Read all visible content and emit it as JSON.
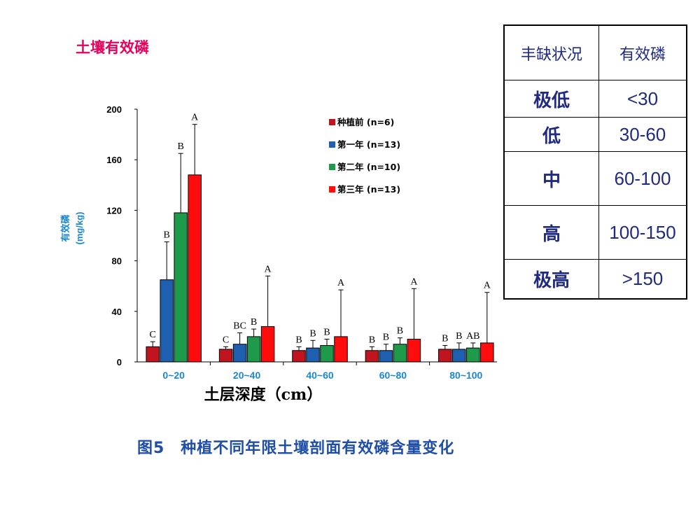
{
  "title": "土壤有效磷",
  "caption": "图5　种植不同年限土壤剖面有效磷含量变化",
  "table": {
    "headers": [
      "丰缺状况",
      "有效磷"
    ],
    "rows": [
      {
        "level": "极低",
        "range": "<30"
      },
      {
        "level": "低",
        "range": "30-60"
      },
      {
        "level": "中",
        "range": "60-100"
      },
      {
        "level": "高",
        "range": "100-150"
      },
      {
        "level": "极高",
        "range": ">150"
      }
    ]
  },
  "chart_data": {
    "type": "bar",
    "xlabel": "土层深度（cm）",
    "ylabel_line1": "有效磷",
    "ylabel_line2": "(mg/kg)",
    "ylim": [
      0,
      200
    ],
    "yticks": [
      0,
      40,
      80,
      120,
      160,
      200
    ],
    "categories": [
      "0~20",
      "20~40",
      "40~60",
      "60~80",
      "80~100"
    ],
    "legend_position": "top-right",
    "series": [
      {
        "name": "种植前 (n=6)",
        "color": "#c0141e",
        "values": [
          12,
          10,
          9,
          9,
          10
        ],
        "errors": [
          4,
          2,
          3,
          3,
          3
        ],
        "letters": [
          "C",
          "C",
          "B",
          "B",
          "B"
        ]
      },
      {
        "name": "第一年 (n=13)",
        "color": "#1f5fb0",
        "values": [
          65,
          14,
          11,
          9,
          10
        ],
        "errors": [
          30,
          9,
          6,
          5,
          5
        ],
        "letters": [
          "B",
          "BC",
          "B",
          "B",
          "B"
        ]
      },
      {
        "name": "第二年 (n=10)",
        "color": "#1f9a4a",
        "values": [
          118,
          20,
          13,
          14,
          11
        ],
        "errors": [
          47,
          6,
          5,
          5,
          4
        ],
        "letters": [
          "B",
          "B",
          "B",
          "B",
          "AB"
        ]
      },
      {
        "name": "第三年 (n=13)",
        "color": "#ff0d0d",
        "values": [
          148,
          28,
          20,
          18,
          15
        ],
        "errors": [
          40,
          40,
          37,
          40,
          40
        ],
        "letters": [
          "A",
          "A",
          "A",
          "A",
          "A"
        ]
      }
    ]
  }
}
